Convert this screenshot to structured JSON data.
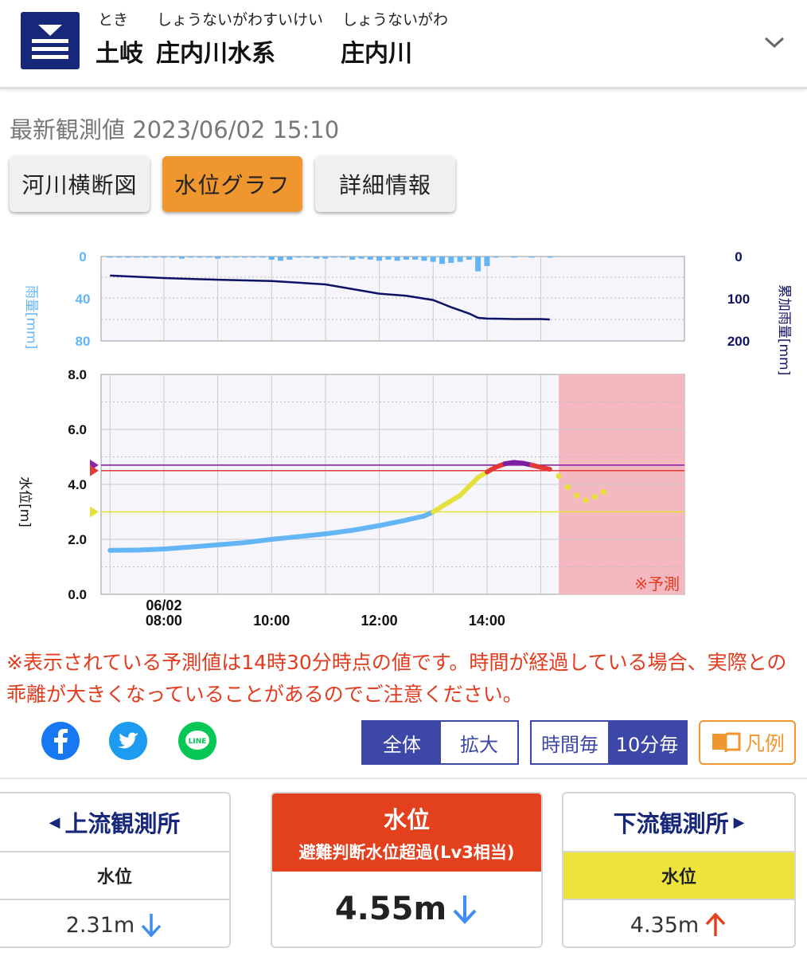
{
  "header": {
    "ruby_office": "とき",
    "office": "土岐",
    "ruby_system": "しょうないがわすいけい",
    "system": "庄内川水系",
    "ruby_river": "しょうないがわ",
    "river": "庄内川",
    "icon": "water-level-station-icon",
    "menu_icon": "chevron-down-icon"
  },
  "timestamp": "最新観測値 2023/06/02 15:10",
  "tabs": [
    {
      "label": "河川横断図",
      "active": false
    },
    {
      "label": "水位グラフ",
      "active": true
    },
    {
      "label": "詳細情報",
      "active": false
    }
  ],
  "chart_data": [
    {
      "type": "bar",
      "title": "",
      "ylabel": "雨量[mm]",
      "y2label": "累加雨量[mm]",
      "ylim": [
        80,
        0
      ],
      "y2lim": [
        200,
        0
      ],
      "yticks": [
        "0",
        "40",
        "80"
      ],
      "y2ticks": [
        "0",
        "100",
        "200"
      ],
      "x_range": [
        "06:50",
        "16:10"
      ],
      "series": [
        {
          "type": "bar",
          "color": "#64b5f6",
          "x": [
            "07:00",
            "07:10",
            "07:20",
            "07:30",
            "07:40",
            "07:50",
            "08:00",
            "08:10",
            "08:20",
            "08:30",
            "08:40",
            "08:50",
            "09:00",
            "09:10",
            "09:20",
            "09:30",
            "09:40",
            "09:50",
            "10:00",
            "10:10",
            "10:20",
            "10:30",
            "10:40",
            "10:50",
            "11:00",
            "11:10",
            "11:20",
            "11:30",
            "11:40",
            "11:50",
            "12:00",
            "12:10",
            "12:20",
            "12:30",
            "12:40",
            "12:50",
            "13:00",
            "13:10",
            "13:20",
            "13:30",
            "13:40",
            "13:50",
            "14:00",
            "14:10",
            "14:20",
            "14:30",
            "14:40",
            "14:50",
            "15:00",
            "15:10"
          ],
          "values": [
            1,
            1,
            1,
            1,
            1,
            1,
            1,
            1,
            2,
            1,
            1,
            1,
            2,
            1,
            1,
            1,
            1,
            1,
            3,
            4,
            3,
            1,
            1,
            2,
            2,
            1,
            1,
            3,
            2,
            3,
            4,
            3,
            4,
            3,
            3,
            4,
            5,
            7,
            6,
            5,
            3,
            14,
            9,
            1,
            0,
            1,
            0,
            1,
            0,
            1
          ]
        },
        {
          "type": "line",
          "color": "#0d1266",
          "axis": "right",
          "x": [
            "07:00",
            "08:00",
            "09:00",
            "10:00",
            "11:00",
            "12:00",
            "12:30",
            "13:00",
            "13:20",
            "13:40",
            "13:50",
            "14:00",
            "14:30",
            "15:00",
            "15:10"
          ],
          "values": [
            45,
            51,
            55,
            58,
            66,
            88,
            93,
            103,
            120,
            135,
            145,
            147,
            148,
            148,
            149
          ]
        }
      ]
    },
    {
      "type": "line",
      "title": "",
      "ylabel": "水位[m]",
      "ylim": [
        0,
        8
      ],
      "yticks": [
        "0.0",
        "2.0",
        "4.0",
        "6.0",
        "8.0"
      ],
      "xticks": [
        "06/02\n08:00",
        "10:00",
        "12:00",
        "14:00"
      ],
      "x_range": [
        "06:50",
        "17:40"
      ],
      "forecast_region": {
        "from": "15:20",
        "to": "17:40",
        "label": "※予測",
        "color": "#f4b8c0"
      },
      "thresholds": [
        {
          "value": 4.7,
          "color": "#8e24aa"
        },
        {
          "value": 4.5,
          "color": "#e53935"
        },
        {
          "value": 3.0,
          "color": "#e6e03a"
        }
      ],
      "series": [
        {
          "name": "observed",
          "x": [
            "07:00",
            "07:30",
            "08:00",
            "08:30",
            "09:00",
            "09:30",
            "10:00",
            "10:30",
            "11:00",
            "11:30",
            "12:00",
            "12:30",
            "12:50",
            "13:00",
            "13:30",
            "13:50",
            "14:00",
            "14:10",
            "14:20",
            "14:30",
            "14:40",
            "14:50",
            "15:00",
            "15:10"
          ],
          "values": [
            1.6,
            1.61,
            1.65,
            1.72,
            1.8,
            1.88,
            2.0,
            2.1,
            2.2,
            2.33,
            2.5,
            2.7,
            2.85,
            3.0,
            3.6,
            4.25,
            4.45,
            4.63,
            4.75,
            4.8,
            4.77,
            4.7,
            4.62,
            4.55
          ]
        },
        {
          "name": "forecast",
          "x": [
            "15:20",
            "15:30",
            "15:40",
            "15:50",
            "16:00",
            "16:10"
          ],
          "values": [
            4.3,
            3.9,
            3.6,
            3.42,
            3.55,
            3.72
          ]
        }
      ],
      "segment_colors": {
        "below_3.0": "#64b5f6",
        "3.0_to_4.5": "#e6e03a",
        "4.5_to_4.7": "#e53935",
        "above_4.7": "#7b1fa2"
      }
    }
  ],
  "note": "※表示されている予測値は14時30分時点の値です。時間が経過している場合、実際との乖離が大きくなっていることがあるのでご注意ください。",
  "share": [
    {
      "name": "facebook-icon",
      "color": "#1877f2"
    },
    {
      "name": "twitter-icon",
      "color": "#1d9bf0"
    },
    {
      "name": "line-icon",
      "color": "#06c755"
    }
  ],
  "controls": {
    "view": {
      "all": "全体",
      "zoom": "拡大"
    },
    "interval": {
      "hourly": "時間毎",
      "tenmin": "10分毎"
    },
    "legend": "凡例"
  },
  "cards": {
    "upstream": {
      "title": "上流観測所",
      "label": "水位",
      "value": "2.31m",
      "trend": "down"
    },
    "current": {
      "title": "水位",
      "status": "避難判断水位超過(Lv3相当)",
      "value": "4.55m",
      "trend": "down",
      "color": "#e3401e"
    },
    "downstream": {
      "title": "下流観測所",
      "label": "水位",
      "value": "4.35m",
      "trend": "up",
      "label_bg": "#ece43a"
    }
  }
}
